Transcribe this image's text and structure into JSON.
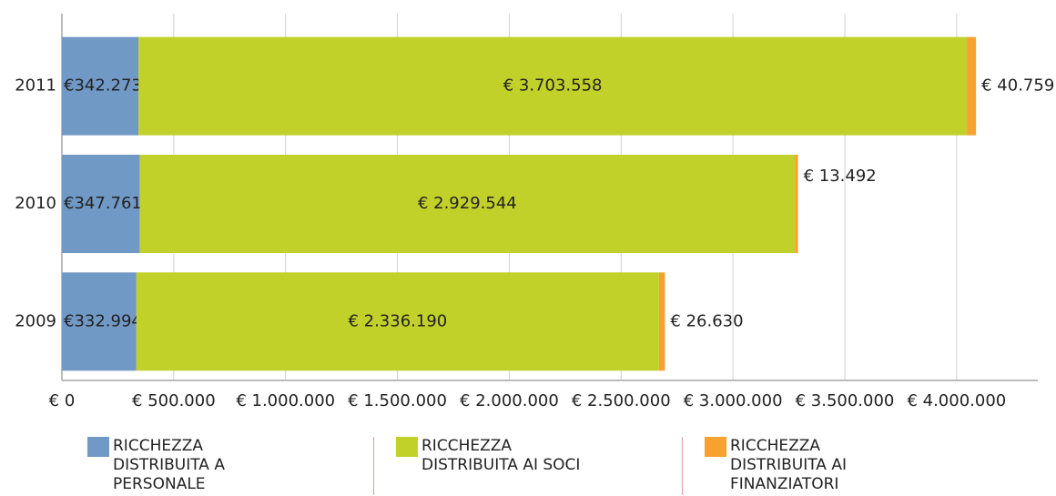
{
  "chart_data": {
    "type": "stacked_barh",
    "categories": [
      "2011",
      "2010",
      "2009"
    ],
    "series": [
      {
        "name": "RICCHEZZA DISTRIBUITA A PERSONALE",
        "color": "#7199c6",
        "values": [
          342273,
          347761,
          332994
        ],
        "value_labels": [
          "€342.273",
          "€347.761",
          "€332.994"
        ]
      },
      {
        "name": "RICCHEZZA DISTRIBUITA AI SOCI",
        "color": "#c2d02a",
        "values": [
          3703558,
          2929544,
          2336190
        ],
        "value_labels": [
          "€ 3.703.558",
          "€ 2.929.544",
          "€ 2.336.190"
        ]
      },
      {
        "name": "RICCHEZZA DISTRIBUITA AI FINANZIATORI",
        "color": "#f7a130",
        "values": [
          40759,
          13492,
          26630
        ],
        "value_labels": [
          "€ 40.759",
          "€ 13.492",
          "€ 26.630"
        ]
      }
    ],
    "xlim": [
      0,
      4200000
    ],
    "xticks": [
      {
        "value": 0,
        "label": "€ 0"
      },
      {
        "value": 500000,
        "label": "€ 500.000"
      },
      {
        "value": 1000000,
        "label": "€ 1.000.000"
      },
      {
        "value": 1500000,
        "label": "€ 1.500.000"
      },
      {
        "value": 2000000,
        "label": "€ 2.000.000"
      },
      {
        "value": 2500000,
        "label": "€ 2.500.000"
      },
      {
        "value": 3000000,
        "label": "€ 3.000.000"
      },
      {
        "value": 3500000,
        "label": "€ 3.500.000"
      },
      {
        "value": 4000000,
        "label": "€ 4.000.000"
      }
    ],
    "grid": true
  }
}
